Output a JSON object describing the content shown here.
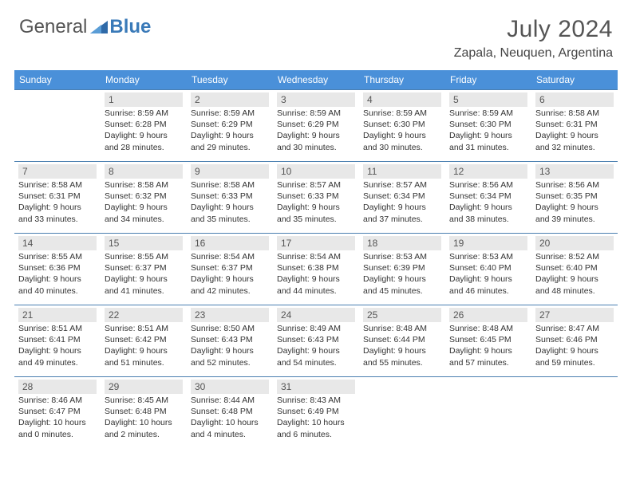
{
  "brand": {
    "part1": "General",
    "part2": "Blue"
  },
  "title": "July 2024",
  "location": "Zapala, Neuquen, Argentina",
  "style": {
    "header_bg": "#4a90d9",
    "header_fg": "#ffffff",
    "row_divider": "#4a7fb0",
    "daynum_bg": "#e8e8e8",
    "daynum_fg": "#555555",
    "body_fg": "#333333",
    "brand_gray": "#555555",
    "brand_blue": "#3a7ab8",
    "title_fontsize": 30,
    "location_fontsize": 16,
    "header_fontsize": 12,
    "daynum_fontsize": 12,
    "info_fontsize": 10.5
  },
  "day_headers": [
    "Sunday",
    "Monday",
    "Tuesday",
    "Wednesday",
    "Thursday",
    "Friday",
    "Saturday"
  ],
  "weeks": [
    [
      null,
      {
        "d": "1",
        "sr": "8:59 AM",
        "ss": "6:28 PM",
        "dl": "9 hours and 28 minutes."
      },
      {
        "d": "2",
        "sr": "8:59 AM",
        "ss": "6:29 PM",
        "dl": "9 hours and 29 minutes."
      },
      {
        "d": "3",
        "sr": "8:59 AM",
        "ss": "6:29 PM",
        "dl": "9 hours and 30 minutes."
      },
      {
        "d": "4",
        "sr": "8:59 AM",
        "ss": "6:30 PM",
        "dl": "9 hours and 30 minutes."
      },
      {
        "d": "5",
        "sr": "8:59 AM",
        "ss": "6:30 PM",
        "dl": "9 hours and 31 minutes."
      },
      {
        "d": "6",
        "sr": "8:58 AM",
        "ss": "6:31 PM",
        "dl": "9 hours and 32 minutes."
      }
    ],
    [
      {
        "d": "7",
        "sr": "8:58 AM",
        "ss": "6:31 PM",
        "dl": "9 hours and 33 minutes."
      },
      {
        "d": "8",
        "sr": "8:58 AM",
        "ss": "6:32 PM",
        "dl": "9 hours and 34 minutes."
      },
      {
        "d": "9",
        "sr": "8:58 AM",
        "ss": "6:33 PM",
        "dl": "9 hours and 35 minutes."
      },
      {
        "d": "10",
        "sr": "8:57 AM",
        "ss": "6:33 PM",
        "dl": "9 hours and 35 minutes."
      },
      {
        "d": "11",
        "sr": "8:57 AM",
        "ss": "6:34 PM",
        "dl": "9 hours and 37 minutes."
      },
      {
        "d": "12",
        "sr": "8:56 AM",
        "ss": "6:34 PM",
        "dl": "9 hours and 38 minutes."
      },
      {
        "d": "13",
        "sr": "8:56 AM",
        "ss": "6:35 PM",
        "dl": "9 hours and 39 minutes."
      }
    ],
    [
      {
        "d": "14",
        "sr": "8:55 AM",
        "ss": "6:36 PM",
        "dl": "9 hours and 40 minutes."
      },
      {
        "d": "15",
        "sr": "8:55 AM",
        "ss": "6:37 PM",
        "dl": "9 hours and 41 minutes."
      },
      {
        "d": "16",
        "sr": "8:54 AM",
        "ss": "6:37 PM",
        "dl": "9 hours and 42 minutes."
      },
      {
        "d": "17",
        "sr": "8:54 AM",
        "ss": "6:38 PM",
        "dl": "9 hours and 44 minutes."
      },
      {
        "d": "18",
        "sr": "8:53 AM",
        "ss": "6:39 PM",
        "dl": "9 hours and 45 minutes."
      },
      {
        "d": "19",
        "sr": "8:53 AM",
        "ss": "6:40 PM",
        "dl": "9 hours and 46 minutes."
      },
      {
        "d": "20",
        "sr": "8:52 AM",
        "ss": "6:40 PM",
        "dl": "9 hours and 48 minutes."
      }
    ],
    [
      {
        "d": "21",
        "sr": "8:51 AM",
        "ss": "6:41 PM",
        "dl": "9 hours and 49 minutes."
      },
      {
        "d": "22",
        "sr": "8:51 AM",
        "ss": "6:42 PM",
        "dl": "9 hours and 51 minutes."
      },
      {
        "d": "23",
        "sr": "8:50 AM",
        "ss": "6:43 PM",
        "dl": "9 hours and 52 minutes."
      },
      {
        "d": "24",
        "sr": "8:49 AM",
        "ss": "6:43 PM",
        "dl": "9 hours and 54 minutes."
      },
      {
        "d": "25",
        "sr": "8:48 AM",
        "ss": "6:44 PM",
        "dl": "9 hours and 55 minutes."
      },
      {
        "d": "26",
        "sr": "8:48 AM",
        "ss": "6:45 PM",
        "dl": "9 hours and 57 minutes."
      },
      {
        "d": "27",
        "sr": "8:47 AM",
        "ss": "6:46 PM",
        "dl": "9 hours and 59 minutes."
      }
    ],
    [
      {
        "d": "28",
        "sr": "8:46 AM",
        "ss": "6:47 PM",
        "dl": "10 hours and 0 minutes."
      },
      {
        "d": "29",
        "sr": "8:45 AM",
        "ss": "6:48 PM",
        "dl": "10 hours and 2 minutes."
      },
      {
        "d": "30",
        "sr": "8:44 AM",
        "ss": "6:48 PM",
        "dl": "10 hours and 4 minutes."
      },
      {
        "d": "31",
        "sr": "8:43 AM",
        "ss": "6:49 PM",
        "dl": "10 hours and 6 minutes."
      },
      null,
      null,
      null
    ]
  ],
  "labels": {
    "sunrise": "Sunrise:",
    "sunset": "Sunset:",
    "daylight": "Daylight:"
  }
}
